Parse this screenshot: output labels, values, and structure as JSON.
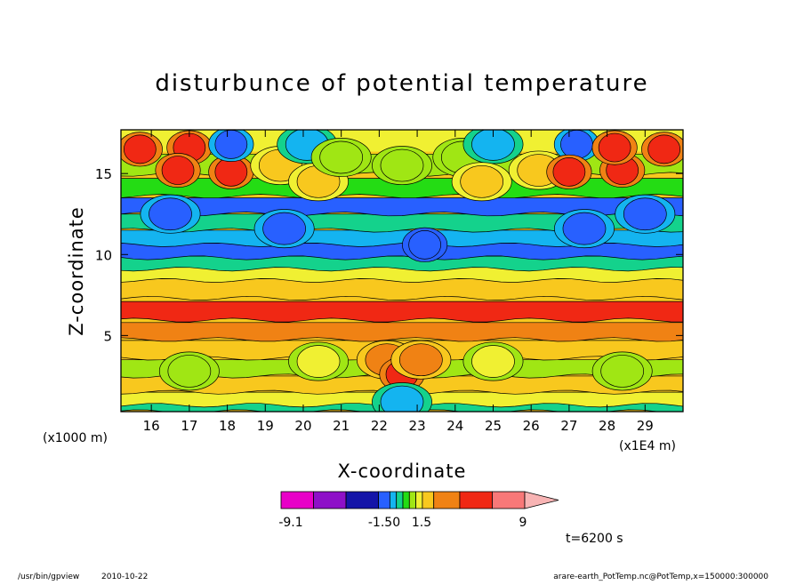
{
  "chart_data": {
    "type": "heatmap",
    "title": "disturbunce of potential temperature",
    "xlabel": "X-coordinate",
    "ylabel": "Z-coordinate",
    "x_unit_label": "(x1E4 m)",
    "y_unit_label": "(x1000 m)",
    "xlim": [
      15.2,
      30.0
    ],
    "ylim": [
      0.3,
      17.7
    ],
    "x_ticks": [
      16,
      17,
      18,
      19,
      20,
      21,
      22,
      23,
      24,
      25,
      26,
      27,
      28,
      29
    ],
    "y_ticks": [
      5,
      10,
      15
    ],
    "x_tick_labels": [
      "16",
      "17",
      "18",
      "19",
      "20",
      "21",
      "22",
      "23",
      "24",
      "25",
      "26",
      "27",
      "28",
      "29"
    ],
    "y_tick_labels": [
      "5",
      "10",
      "15"
    ],
    "color_levels": [
      -9.1,
      -6,
      -3,
      -1.5,
      -1,
      -0.5,
      0,
      0.5,
      1,
      1.5,
      3,
      6,
      9
    ],
    "band_colors": [
      "#e800c8",
      "#8e10c8",
      "#1414a8",
      "#2860ff",
      "#14b4f0",
      "#14d28c",
      "#24dc14",
      "#a0e614",
      "#f0f032",
      "#f8c81e",
      "#f08214",
      "#f02814",
      "#f87878",
      "#f8b4b4"
    ],
    "colorbar_labels": [
      "-9.1",
      "-1.50",
      "1.5",
      "9"
    ],
    "layers": [
      {
        "z": 17.0,
        "value": 0.8
      },
      {
        "z": 15.7,
        "value": 0.3
      },
      {
        "z": 14.2,
        "value": -0.4
      },
      {
        "z": 13.0,
        "value": -2.0
      },
      {
        "z": 12.0,
        "value": -0.8
      },
      {
        "z": 11.0,
        "value": -1.2
      },
      {
        "z": 10.2,
        "value": -2.2
      },
      {
        "z": 9.4,
        "value": -0.7
      },
      {
        "z": 8.8,
        "value": 0.6
      },
      {
        "z": 8.0,
        "value": 1.4
      },
      {
        "z": 6.6,
        "value": 3.5
      },
      {
        "z": 5.3,
        "value": 1.6
      },
      {
        "z": 4.2,
        "value": 1.2
      },
      {
        "z": 3.0,
        "value": 0.3
      },
      {
        "z": 2.0,
        "value": 1.1
      },
      {
        "z": 1.0,
        "value": 0.9
      },
      {
        "z": 0.4,
        "value": -0.6
      }
    ],
    "features": [
      {
        "x": 15.7,
        "z": 16.5,
        "value": 3.8
      },
      {
        "x": 17.0,
        "z": 16.6,
        "value": 3.5
      },
      {
        "x": 16.7,
        "z": 15.2,
        "value": 4.0
      },
      {
        "x": 18.1,
        "z": 15.1,
        "value": 3.2
      },
      {
        "x": 18.1,
        "z": 16.8,
        "value": -2.5
      },
      {
        "x": 19.4,
        "z": 15.5,
        "value": 1.1
      },
      {
        "x": 20.4,
        "z": 14.5,
        "value": 1.0
      },
      {
        "x": 20.1,
        "z": 16.8,
        "value": -1.3
      },
      {
        "x": 21.0,
        "z": 16.0,
        "value": 0.2
      },
      {
        "x": 22.6,
        "z": 15.5,
        "value": 0.1
      },
      {
        "x": 24.2,
        "z": 16.0,
        "value": 0.2
      },
      {
        "x": 25.0,
        "z": 16.8,
        "value": -1.3
      },
      {
        "x": 24.7,
        "z": 14.5,
        "value": 1.0
      },
      {
        "x": 26.2,
        "z": 15.2,
        "value": 1.1
      },
      {
        "x": 27.2,
        "z": 16.8,
        "value": -2.5
      },
      {
        "x": 27.0,
        "z": 15.1,
        "value": 3.2
      },
      {
        "x": 28.4,
        "z": 15.2,
        "value": 4.0
      },
      {
        "x": 28.2,
        "z": 16.6,
        "value": 3.5
      },
      {
        "x": 29.5,
        "z": 16.5,
        "value": 3.8
      },
      {
        "x": 16.5,
        "z": 12.5,
        "value": -1.7
      },
      {
        "x": 19.5,
        "z": 11.6,
        "value": -1.8
      },
      {
        "x": 23.2,
        "z": 10.6,
        "value": -2.6
      },
      {
        "x": 27.4,
        "z": 11.6,
        "value": -1.8
      },
      {
        "x": 29.0,
        "z": 12.5,
        "value": -1.7
      },
      {
        "x": 17.0,
        "z": 2.8,
        "value": 0.4
      },
      {
        "x": 20.4,
        "z": 3.4,
        "value": 0.5
      },
      {
        "x": 25.0,
        "z": 3.4,
        "value": 0.5
      },
      {
        "x": 28.4,
        "z": 2.8,
        "value": 0.4
      },
      {
        "x": 22.2,
        "z": 3.5,
        "value": 2.0
      },
      {
        "x": 22.6,
        "z": 2.6,
        "value": 4.0
      },
      {
        "x": 23.1,
        "z": 3.5,
        "value": 2.0
      },
      {
        "x": 22.6,
        "z": 0.9,
        "value": -1.2
      }
    ]
  },
  "annotations": {
    "time_label": "t=6200 s",
    "program": "/usr/bin/gpview",
    "date": "2010-10-22",
    "source": "arare-earth_PotTemp.nc@PotTemp,x=150000:300000"
  }
}
